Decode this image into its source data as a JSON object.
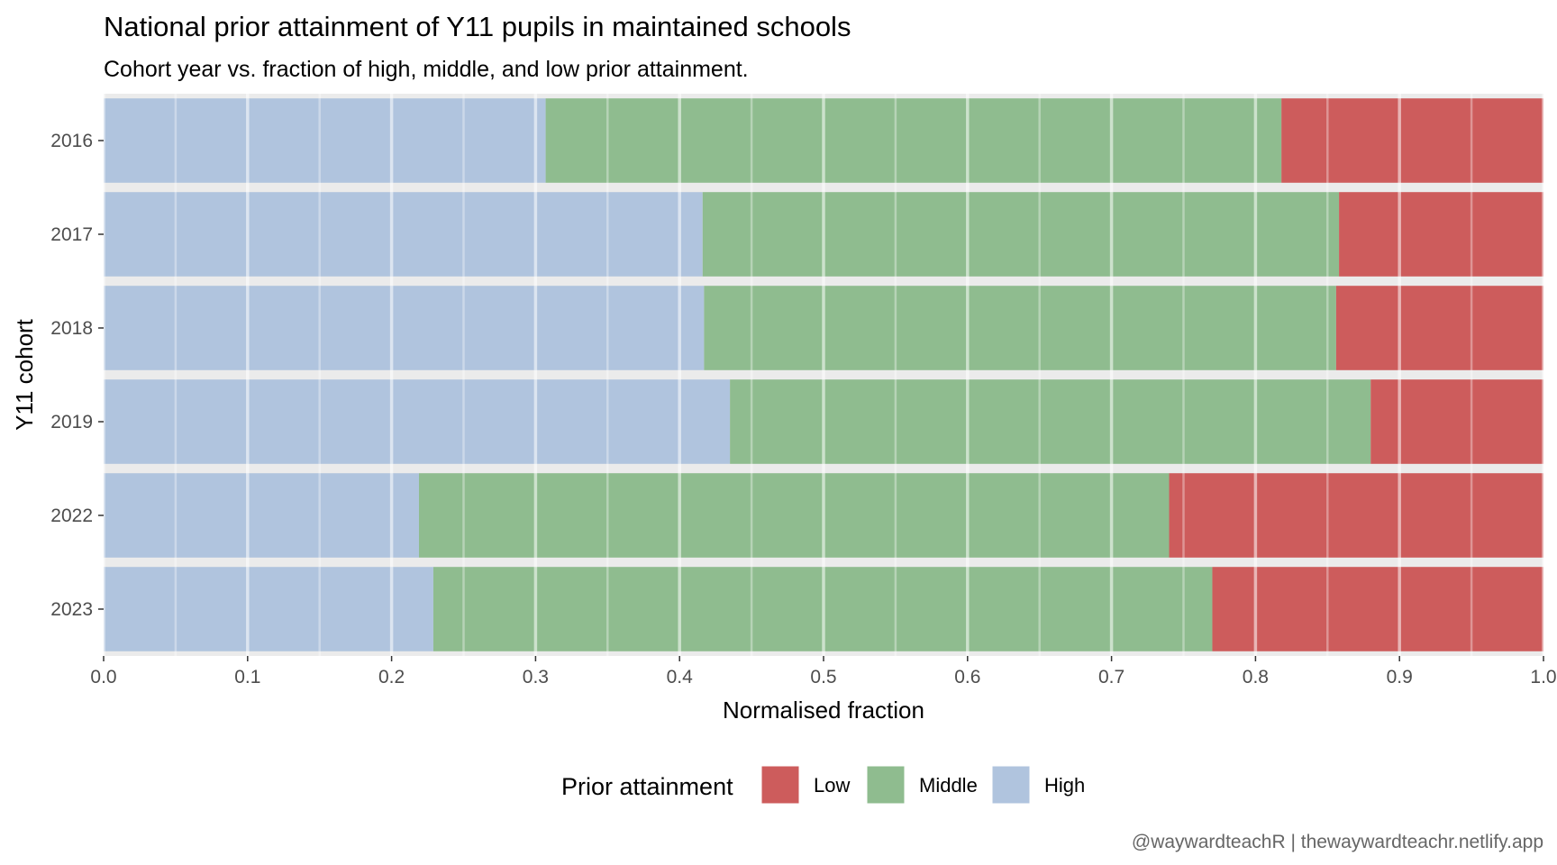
{
  "chart_data": {
    "type": "bar",
    "orientation": "horizontal",
    "stacked": true,
    "title": "National prior attainment of Y11 pupils in maintained schools",
    "subtitle": "Cohort year vs. fraction of high, middle, and low prior attainment.",
    "xlabel": "Normalised fraction",
    "ylabel": "Y11 cohort",
    "xlim": [
      0,
      1
    ],
    "x_ticks": [
      "0.0",
      "0.1",
      "0.2",
      "0.3",
      "0.4",
      "0.5",
      "0.6",
      "0.7",
      "0.8",
      "0.9",
      "1.0"
    ],
    "grid": true,
    "categories": [
      "2016",
      "2017",
      "2018",
      "2019",
      "2022",
      "2023"
    ],
    "series": [
      {
        "name": "High",
        "color": "#b0c4de",
        "values": [
          0.307,
          0.416,
          0.417,
          0.435,
          0.219,
          0.229
        ]
      },
      {
        "name": "Middle",
        "color": "#8fbc8f",
        "values": [
          0.511,
          0.442,
          0.439,
          0.445,
          0.521,
          0.541
        ]
      },
      {
        "name": "Low",
        "color": "#cd5c5c",
        "values": [
          0.182,
          0.142,
          0.144,
          0.12,
          0.26,
          0.23
        ]
      }
    ],
    "legend": {
      "title": "Prior attainment",
      "position": "bottom",
      "entries": [
        "Low",
        "Middle",
        "High"
      ]
    },
    "caption": "@waywardteachR | thewaywardteachr.netlify.app"
  }
}
